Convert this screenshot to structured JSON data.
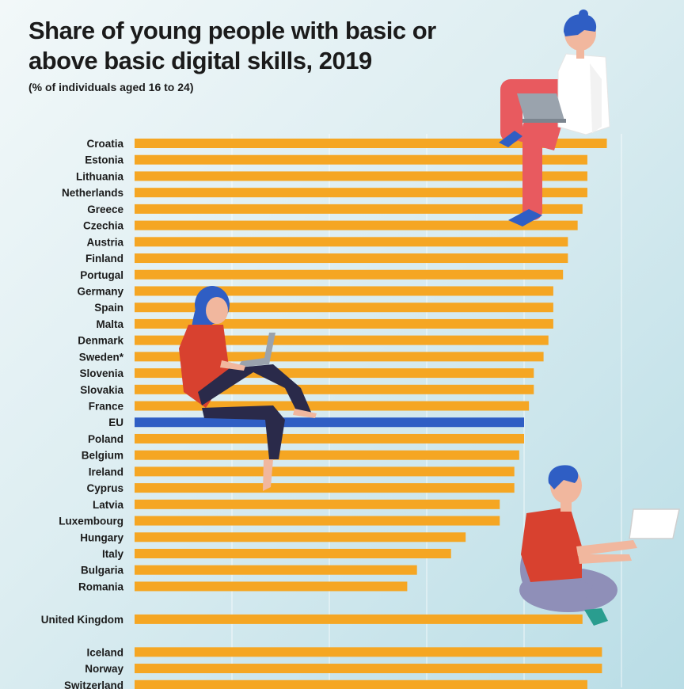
{
  "title": "Share of young people with basic or above basic digital skills, 2019",
  "subtitle": "(% of individuals aged 16 to 24)",
  "colors": {
    "bar": "#f5a623",
    "highlight_bar": "#2f5ec4",
    "background": "#d6ebf0"
  },
  "illustrations": [
    "man-with-laptop-sitting",
    "woman-with-laptop-sitting",
    "boy-with-tablet-sitting"
  ],
  "chart_data": {
    "type": "bar",
    "orientation": "horizontal",
    "title": "Share of young people with basic or above basic digital skills, 2019",
    "subtitle": "(% of individuals aged 16 to 24)",
    "xlim": [
      0,
      100
    ],
    "grid": true,
    "highlight": "EU",
    "categories": [
      "Croatia",
      "Estonia",
      "Lithuania",
      "Netherlands",
      "Greece",
      "Czechia",
      "Austria",
      "Finland",
      "Portugal",
      "Germany",
      "Spain",
      "Malta",
      "Denmark",
      "Sweden*",
      "Slovenia",
      "Slovakia",
      "France",
      "EU",
      "Poland",
      "Belgium",
      "Ireland",
      "Cyprus",
      "Latvia",
      "Luxembourg",
      "Hungary",
      "Italy",
      "Bulgaria",
      "Romania",
      "United Kingdom",
      "Iceland",
      "Norway",
      "Switzerland"
    ],
    "groups": [
      28,
      1,
      3
    ],
    "values": [
      97,
      93,
      93,
      93,
      92,
      91,
      89,
      89,
      88,
      86,
      86,
      86,
      85,
      84,
      82,
      82,
      81,
      80,
      80,
      79,
      78,
      78,
      75,
      75,
      68,
      65,
      58,
      56,
      92,
      96,
      96,
      93
    ]
  }
}
